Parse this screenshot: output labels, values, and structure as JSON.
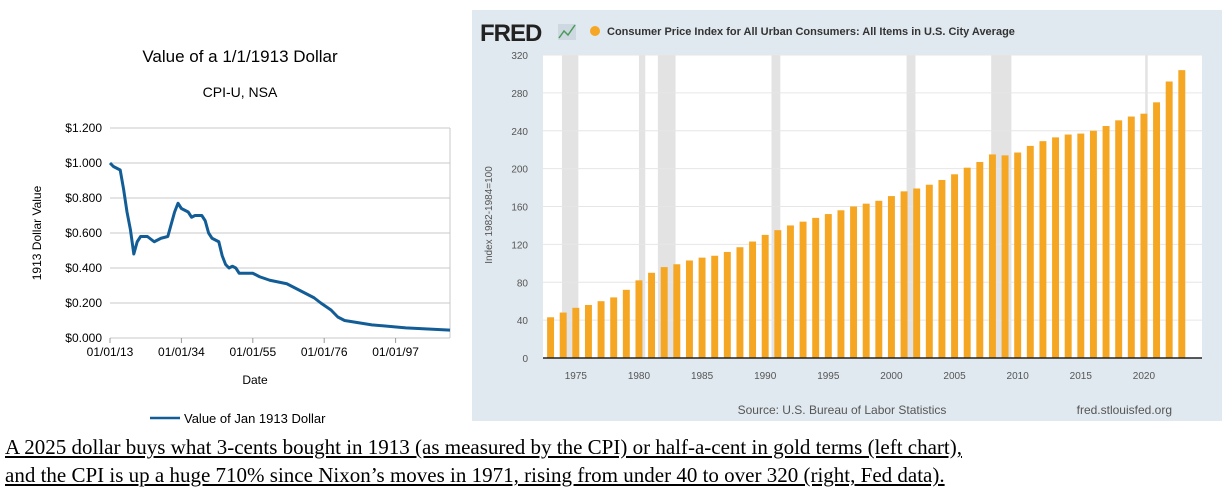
{
  "chart_data": [
    {
      "type": "line",
      "title": "Value of a 1/1/1913 Dollar",
      "subtitle": "CPI-U, NSA",
      "xlabel": "Date",
      "ylabel": "1913 Dollar Value",
      "xlim": [
        1913,
        2013
      ],
      "ylim": [
        0,
        1.2
      ],
      "yticks": [
        "$0.000",
        "$0.200",
        "$0.400",
        "$0.600",
        "$0.800",
        "$1.000",
        "$1.200"
      ],
      "ytick_values": [
        0,
        0.2,
        0.4,
        0.6,
        0.8,
        1.0,
        1.2
      ],
      "xticks": [
        "01/01/13",
        "01/01/34",
        "01/01/55",
        "01/01/76",
        "01/01/97"
      ],
      "xtick_values": [
        1913,
        1934,
        1955,
        1976,
        1997
      ],
      "grid": true,
      "legend_position": "bottom",
      "color": "#135d97",
      "series": [
        {
          "name": "Value of Jan 1913 Dollar",
          "x": [
            1913,
            1914,
            1915,
            1916,
            1917,
            1918,
            1919,
            1920,
            1921,
            1922,
            1924,
            1926,
            1928,
            1930,
            1931,
            1932,
            1933,
            1934,
            1936,
            1937,
            1938,
            1940,
            1941,
            1942,
            1943,
            1945,
            1946,
            1947,
            1948,
            1949,
            1950,
            1951,
            1955,
            1957,
            1960,
            1965,
            1970,
            1973,
            1975,
            1978,
            1980,
            1982,
            1990,
            2000,
            2013
          ],
          "y": [
            1.0,
            0.98,
            0.97,
            0.96,
            0.85,
            0.72,
            0.62,
            0.48,
            0.55,
            0.58,
            0.58,
            0.55,
            0.57,
            0.58,
            0.65,
            0.72,
            0.77,
            0.74,
            0.72,
            0.69,
            0.7,
            0.7,
            0.67,
            0.6,
            0.57,
            0.55,
            0.47,
            0.42,
            0.4,
            0.41,
            0.4,
            0.37,
            0.37,
            0.35,
            0.33,
            0.31,
            0.26,
            0.23,
            0.2,
            0.16,
            0.12,
            0.1,
            0.075,
            0.058,
            0.045
          ]
        }
      ]
    },
    {
      "type": "bar",
      "brand": "FRED",
      "title": "Consumer Price Index for All Urban Consumers: All Items in U.S. City Average",
      "ylabel": "Index 1982-1984=100",
      "ylim": [
        0,
        320
      ],
      "yticks": [
        0,
        40,
        80,
        120,
        160,
        200,
        240,
        280,
        320
      ],
      "xticks": [
        1975,
        1980,
        1985,
        1990,
        1995,
        2000,
        2005,
        2010,
        2015,
        2020
      ],
      "xlim": [
        1972.4,
        2024.6
      ],
      "grid": true,
      "source": "Source: U.S. Bureau of Labor Statistics",
      "site": "fred.stlouisfed.org",
      "bar_color": "#f5a623",
      "recession_color": "#e3e3e3",
      "recessions": [
        [
          1973.9,
          1975.2
        ],
        [
          1980.0,
          1980.5
        ],
        [
          1981.5,
          1982.9
        ],
        [
          1990.5,
          1991.2
        ],
        [
          2001.2,
          2001.9
        ],
        [
          2007.9,
          2009.5
        ],
        [
          2020.1,
          2020.3
        ]
      ],
      "categories": [
        1973,
        1974,
        1975,
        1976,
        1977,
        1978,
        1979,
        1980,
        1981,
        1982,
        1983,
        1984,
        1985,
        1986,
        1987,
        1988,
        1989,
        1990,
        1991,
        1992,
        1993,
        1994,
        1995,
        1996,
        1997,
        1998,
        1999,
        2000,
        2001,
        2002,
        2003,
        2004,
        2005,
        2006,
        2007,
        2008,
        2009,
        2010,
        2011,
        2012,
        2013,
        2014,
        2015,
        2016,
        2017,
        2018,
        2019,
        2020,
        2021,
        2022,
        2023
      ],
      "values": [
        43,
        48,
        53,
        56,
        60,
        64,
        72,
        82,
        90,
        96,
        99,
        103,
        106,
        108,
        112,
        117,
        123,
        130,
        135,
        140,
        144,
        148,
        152,
        156,
        160,
        163,
        166,
        171,
        176,
        179,
        183,
        188,
        194,
        201,
        207,
        215,
        214,
        217,
        224,
        229,
        233,
        236,
        237,
        240,
        245,
        251,
        255,
        258,
        270,
        292,
        304
      ]
    }
  ],
  "caption": {
    "line1": "A 2025 dollar buys what 3-cents bought in 1913 (as measured by the CPI) or half-a-cent in gold terms (left chart),",
    "line2": "and the CPI is up a huge 710% since Nixon’s moves in 1971, rising from under 40 to over 320 (right, Fed data)."
  }
}
